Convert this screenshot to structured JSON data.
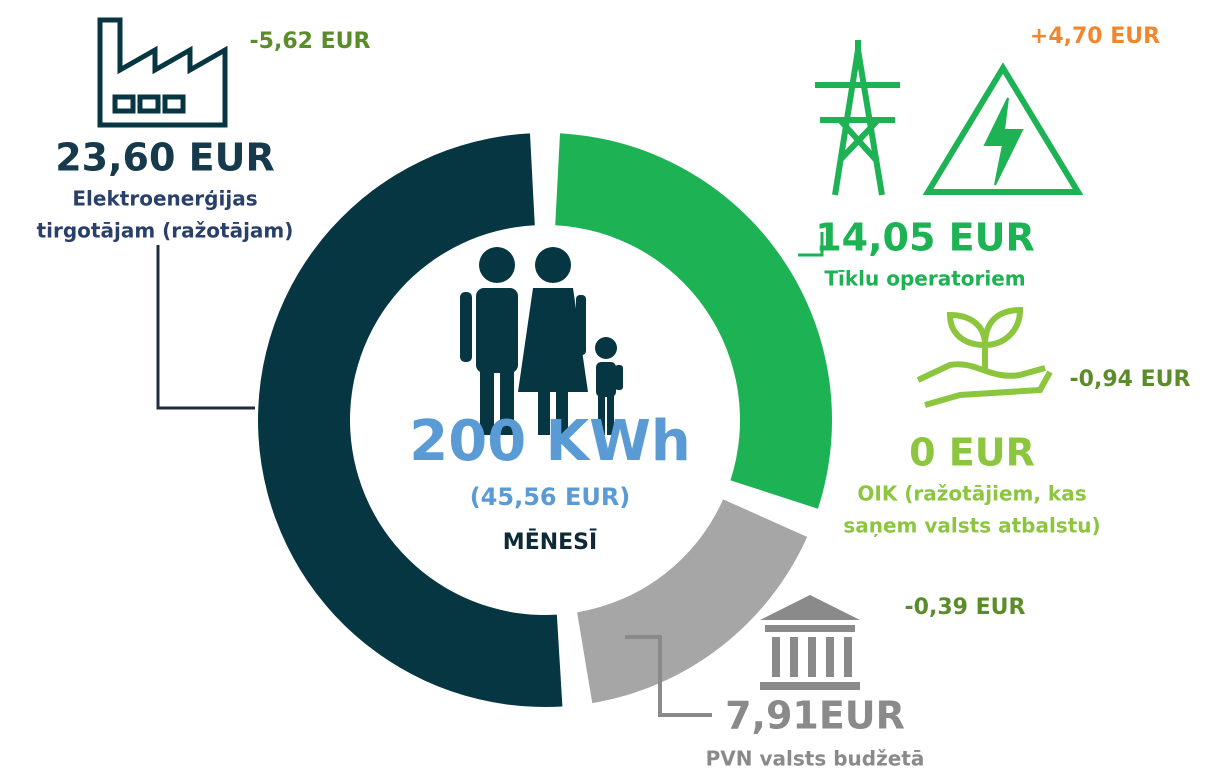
{
  "chart_data": {
    "type": "donut",
    "categories": [
      [
        "Elektroenerģijas",
        "tirgotājam (ražotājam)"
      ],
      [
        "Tīklu operatoriem"
      ],
      [
        "OIK (ražotājiem, kas",
        "saņem valsts atbalstu)"
      ],
      [
        "PVN valsts budžetā"
      ]
    ],
    "values": [
      23.6,
      14.05,
      0,
      7.91
    ],
    "value_labels": [
      "23,60 EUR",
      "14,05 EUR",
      "0 EUR",
      "7,91EUR"
    ],
    "colors": [
      "#063642",
      "#1db354",
      "#8cc63f",
      "#a6a6a6"
    ],
    "changes": [
      "-5,62 EUR",
      "+4,70 EUR",
      "-0,94 EUR",
      "-0,39 EUR"
    ],
    "change_colors": [
      "#5b8c2a",
      "#f0872e",
      "#5b8c2a",
      "#5b8c2a"
    ],
    "center": {
      "title": "200 KWh",
      "subtitle": "(45,56 EUR)",
      "caption": "MĒNESĪ"
    }
  }
}
